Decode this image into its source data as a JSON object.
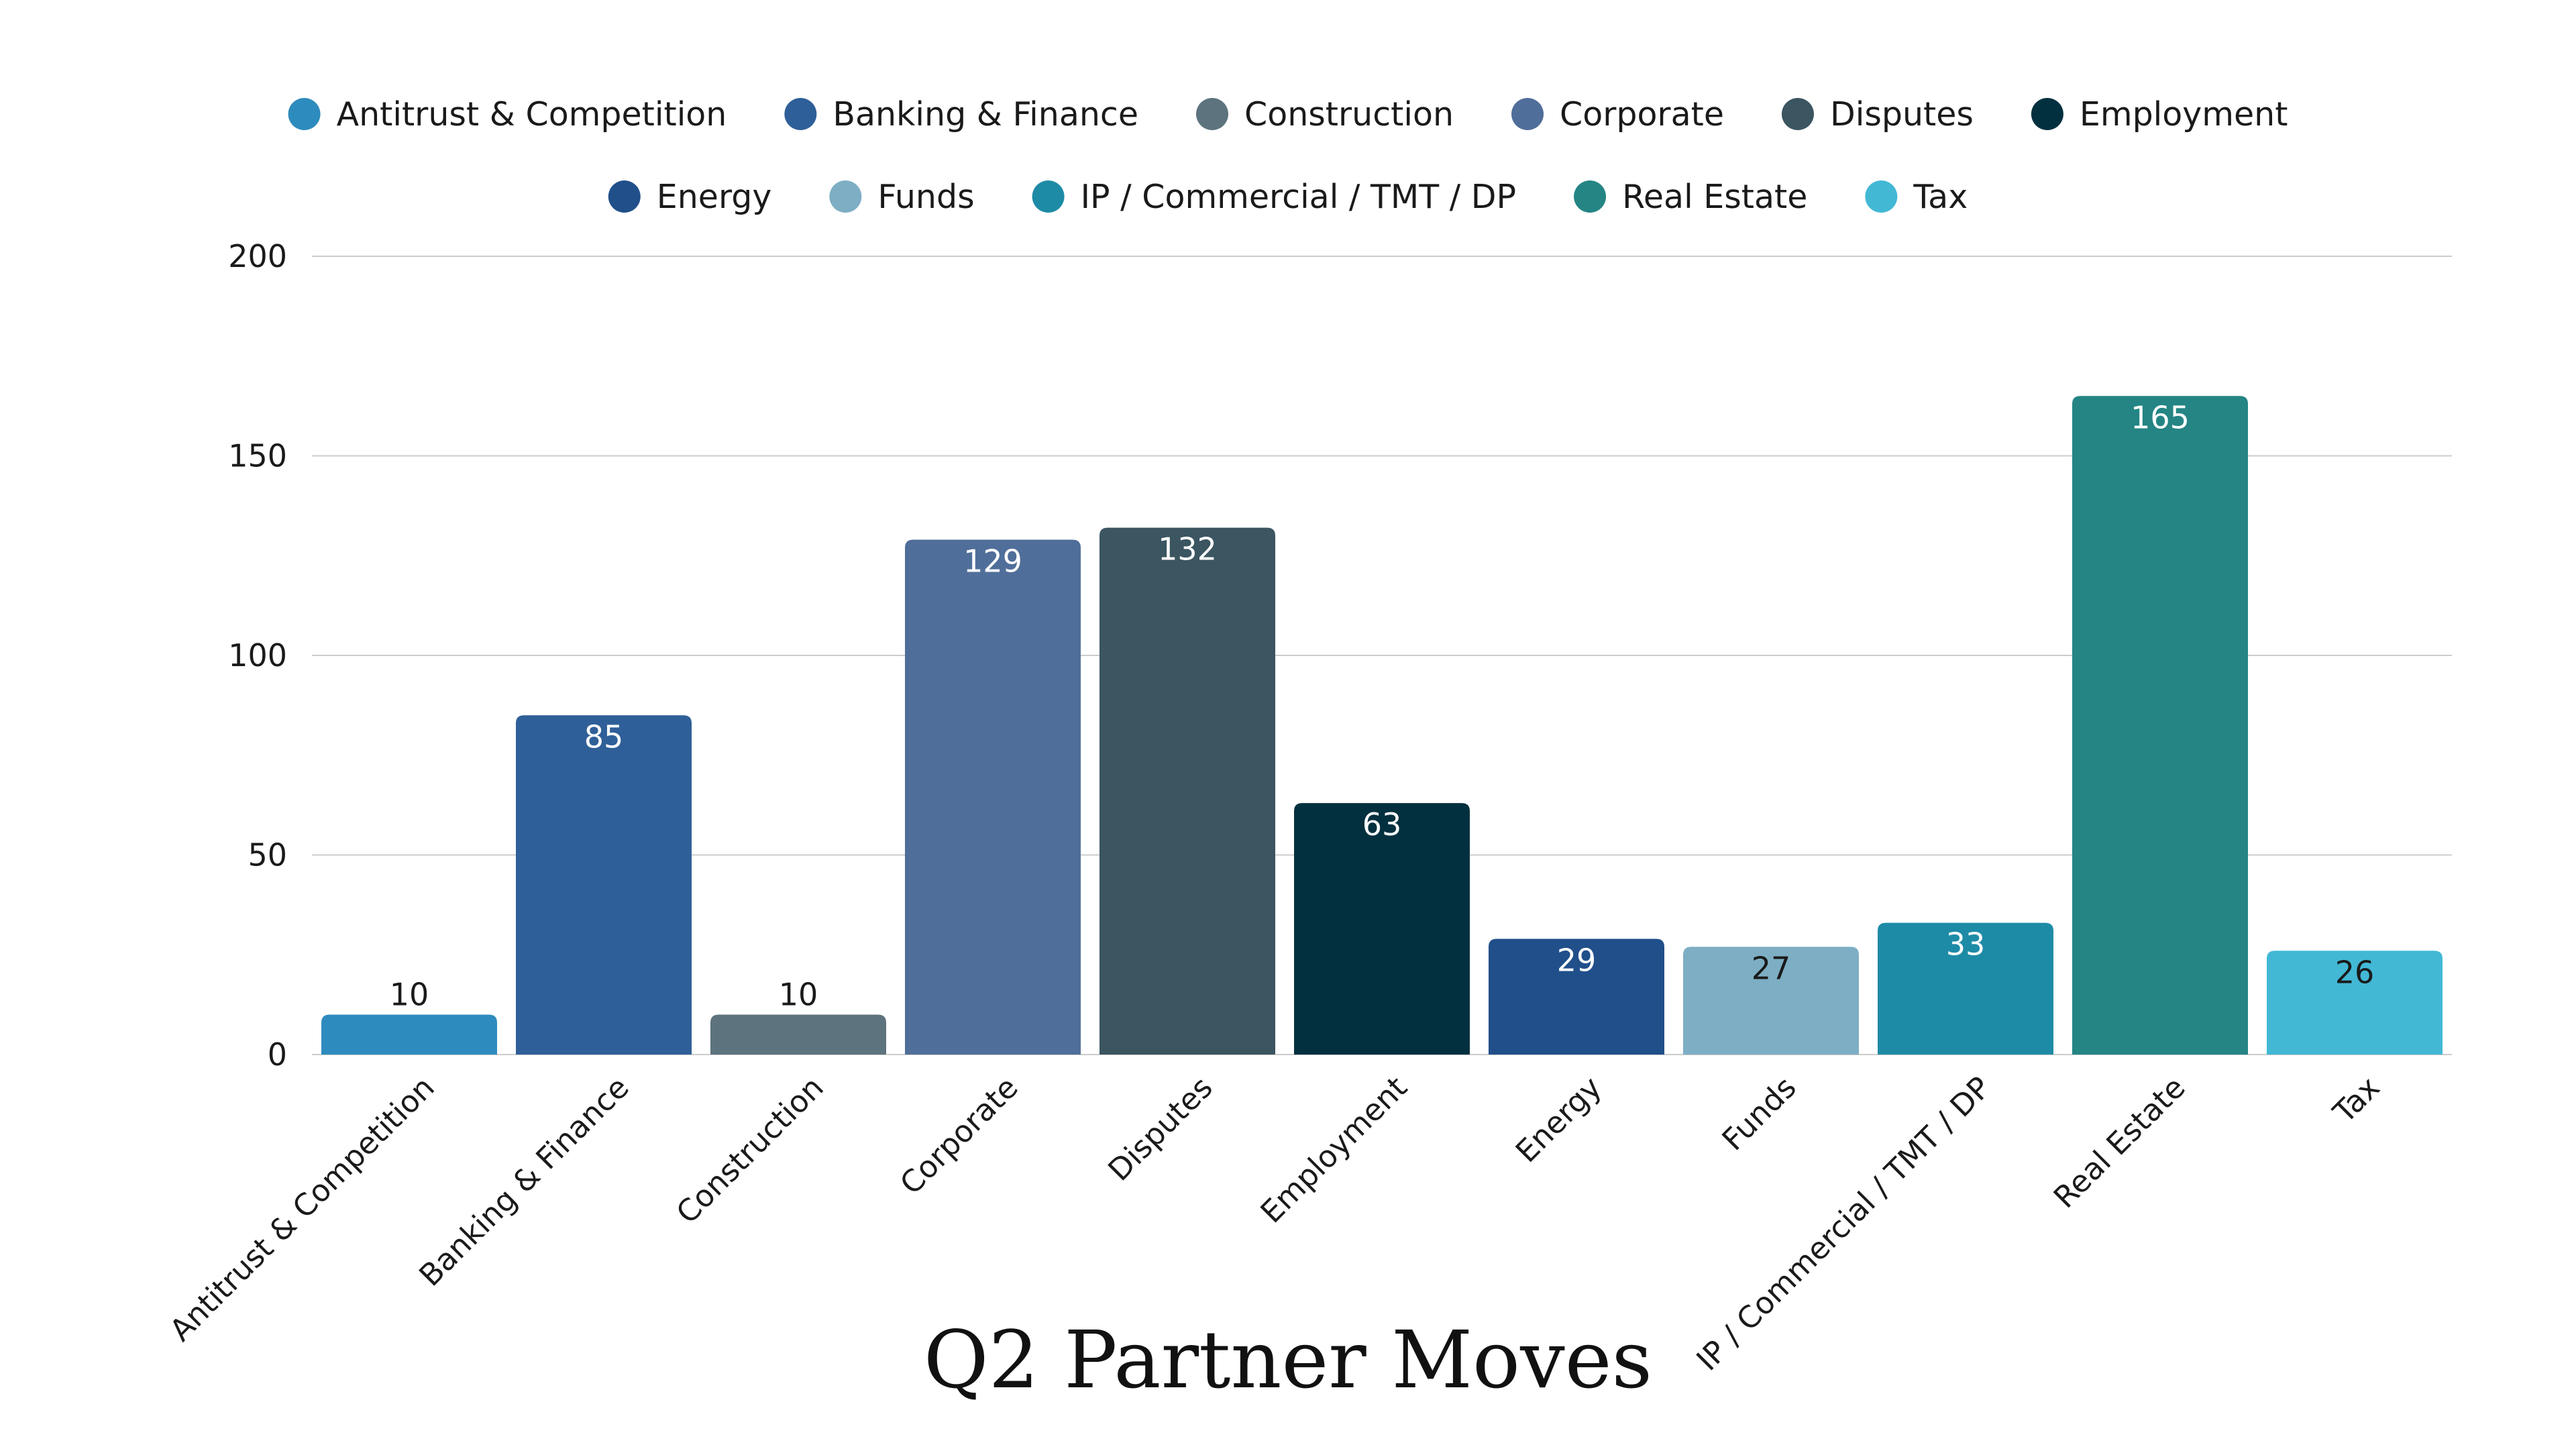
{
  "chart_data": {
    "type": "bar",
    "title": "Q2 Partner Moves",
    "xlabel": "",
    "ylabel": "",
    "ylim": [
      0,
      200
    ],
    "yticks": [
      0,
      50,
      100,
      150,
      200
    ],
    "grid": true,
    "legend_position": "top",
    "categories": [
      "Antitrust & Competition",
      "Banking & Finance",
      "Construction",
      "Corporate",
      "Disputes",
      "Employment",
      "Energy",
      "Funds",
      "IP / Commercial / TMT / DP",
      "Real Estate",
      "Tax"
    ],
    "values": [
      10,
      85,
      10,
      129,
      132,
      63,
      29,
      27,
      33,
      165,
      26
    ],
    "colors": [
      "#2e8bbd",
      "#2f5f98",
      "#5d737e",
      "#506e9a",
      "#3b5561",
      "#02303f",
      "#204f8a",
      "#7daec4",
      "#1e8ba6",
      "#248584",
      "#42b8d5"
    ],
    "value_label_colors": [
      "#1a1a1a",
      "#ffffff",
      "#1a1a1a",
      "#ffffff",
      "#ffffff",
      "#ffffff",
      "#ffffff",
      "#1a1a1a",
      "#ffffff",
      "#ffffff",
      "#1a1a1a"
    ]
  },
  "colors": {
    "grid": "#cccccc",
    "text": "#1a1a1a"
  }
}
